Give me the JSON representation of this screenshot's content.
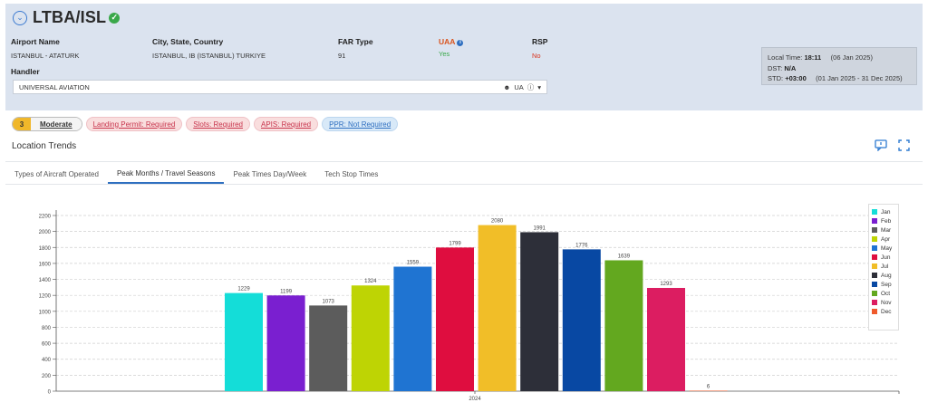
{
  "header": {
    "title": "LTBA/ISL",
    "airport_name_label": "Airport Name",
    "airport_name": "ISTANBUL - ATATURK",
    "city_label": "City, State, Country",
    "city": "ISTANBUL, IB (ISTANBUL) TURKIYE",
    "far_label": "FAR Type",
    "far": "91",
    "uaa_label": "UAA",
    "uaa": "Yes",
    "rsp_label": "RSP",
    "rsp": "No",
    "handler_label": "Handler",
    "handler": "UNIVERSAL AVIATION",
    "handler_code": "UA"
  },
  "time": {
    "local_label": "Local Time:",
    "local_time": "18:11",
    "local_date": "(06 Jan 2025)",
    "dst_label": "DST:",
    "dst": "N/A",
    "std_label": "STD:",
    "std": "+03:00",
    "std_range": "(01 Jan 2025 - 31 Dec 2025)"
  },
  "badges": {
    "risk_num": "3",
    "risk_word": "Moderate",
    "landing": "Landing Permit: Required",
    "slots": "Slots: Required",
    "apis": "APIS: Required",
    "ppr": "PPR: Not Required"
  },
  "section": {
    "title": "Location Trends"
  },
  "tabs": [
    "Types of Aircraft Operated",
    "Peak Months / Travel Seasons",
    "Peak Times Day/Week",
    "Tech Stop Times"
  ],
  "colors": {
    "Jan": "#14ddd8",
    "Feb": "#7a1fd0",
    "Mar": "#5c5c5c",
    "Apr": "#bed404",
    "May": "#1f74d2",
    "Jun": "#df0d3f",
    "Jul": "#f1be28",
    "Aug": "#2d2f39",
    "Sep": "#0848a3",
    "Oct": "#63a81f",
    "Nov": "#dc1d61",
    "Dec": "#ef5a2c"
  },
  "chart_data": {
    "type": "bar",
    "categories": [
      "2024"
    ],
    "series": [
      {
        "name": "Jan",
        "values": [
          1229
        ]
      },
      {
        "name": "Feb",
        "values": [
          1199
        ]
      },
      {
        "name": "Mar",
        "values": [
          1073
        ]
      },
      {
        "name": "Apr",
        "values": [
          1324
        ]
      },
      {
        "name": "May",
        "values": [
          1559
        ]
      },
      {
        "name": "Jun",
        "values": [
          1799
        ]
      },
      {
        "name": "Jul",
        "values": [
          2080
        ]
      },
      {
        "name": "Aug",
        "values": [
          1991
        ]
      },
      {
        "name": "Sep",
        "values": [
          1776
        ]
      },
      {
        "name": "Oct",
        "values": [
          1639
        ]
      },
      {
        "name": "Nov",
        "values": [
          1293
        ]
      },
      {
        "name": "Dec",
        "values": [
          6
        ]
      }
    ],
    "yticks": [
      0,
      200,
      400,
      600,
      800,
      1000,
      1200,
      1400,
      1600,
      1800,
      2000,
      2200
    ],
    "ylim": [
      0,
      2200
    ],
    "grid": true,
    "legend": "right"
  }
}
